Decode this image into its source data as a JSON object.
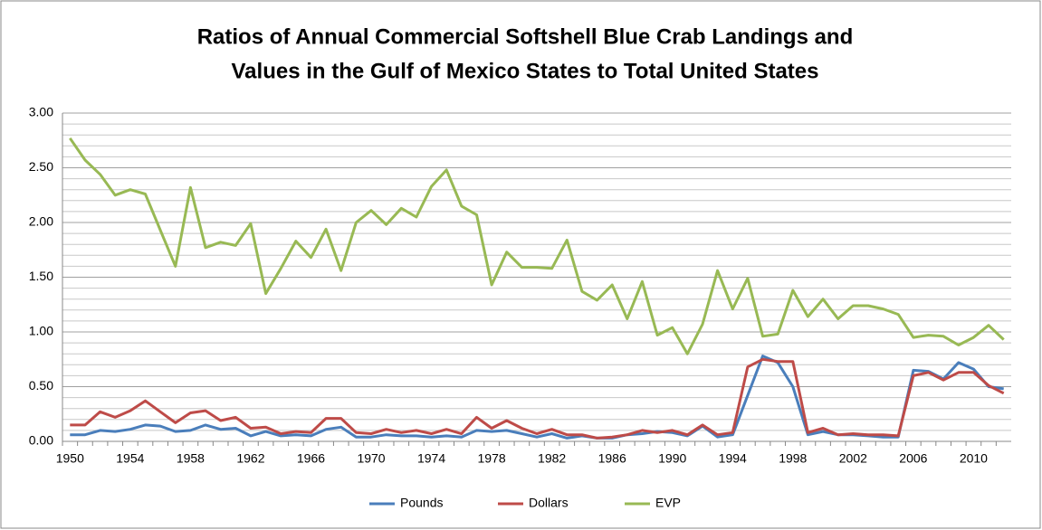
{
  "chart_data": {
    "type": "line",
    "title": [
      "Ratios of Annual Commercial Softshell Blue Crab Landings and",
      "Values in the Gulf of Mexico States to Total United States"
    ],
    "categories": [
      "1950",
      null,
      null,
      null,
      "1954",
      null,
      null,
      null,
      "1958",
      null,
      null,
      null,
      "1962",
      null,
      null,
      null,
      "1966",
      null,
      null,
      null,
      "1970",
      null,
      null,
      null,
      "1974",
      null,
      null,
      null,
      "1978",
      null,
      null,
      null,
      "1982",
      null,
      null,
      null,
      "1986",
      null,
      null,
      null,
      "1990",
      null,
      null,
      null,
      "1994",
      null,
      null,
      null,
      "1998",
      null,
      null,
      null,
      "2002",
      null,
      null,
      null,
      "2006",
      null,
      null,
      null,
      "2010",
      null,
      null
    ],
    "series": [
      {
        "name": "Pounds",
        "color": "#4a7ebb",
        "values": [
          0.06,
          0.06,
          0.1,
          0.09,
          0.11,
          0.15,
          0.14,
          0.09,
          0.1,
          0.15,
          0.11,
          0.12,
          0.05,
          0.09,
          0.05,
          0.06,
          0.05,
          0.11,
          0.13,
          0.04,
          0.04,
          0.06,
          0.05,
          0.05,
          0.04,
          0.05,
          0.04,
          0.1,
          0.09,
          0.1,
          0.07,
          0.04,
          0.07,
          0.03,
          0.05,
          0.03,
          0.03,
          0.06,
          0.07,
          0.09,
          0.08,
          0.05,
          0.14,
          0.04,
          0.06,
          0.42,
          0.78,
          0.72,
          0.5,
          0.06,
          0.09,
          0.06,
          0.06,
          0.05,
          0.04,
          0.04,
          0.65,
          0.64,
          0.57,
          0.72,
          0.66,
          0.5,
          0.48
        ]
      },
      {
        "name": "Dollars",
        "color": "#be4b48",
        "values": [
          0.15,
          0.15,
          0.27,
          0.22,
          0.28,
          0.37,
          0.27,
          0.17,
          0.26,
          0.28,
          0.19,
          0.22,
          0.12,
          0.13,
          0.07,
          0.09,
          0.08,
          0.21,
          0.21,
          0.08,
          0.07,
          0.11,
          0.08,
          0.1,
          0.07,
          0.11,
          0.07,
          0.22,
          0.12,
          0.19,
          0.12,
          0.07,
          0.11,
          0.06,
          0.06,
          0.03,
          0.04,
          0.06,
          0.1,
          0.08,
          0.1,
          0.06,
          0.15,
          0.06,
          0.08,
          0.68,
          0.75,
          0.73,
          0.73,
          0.08,
          0.12,
          0.06,
          0.07,
          0.06,
          0.06,
          0.05,
          0.6,
          0.63,
          0.56,
          0.63,
          0.63,
          0.51,
          0.44
        ]
      },
      {
        "name": "EVP",
        "color": "#98b954",
        "values": [
          2.77,
          2.57,
          2.44,
          2.25,
          2.3,
          2.26,
          1.93,
          1.6,
          2.32,
          1.77,
          1.82,
          1.79,
          1.99,
          1.35,
          1.58,
          1.83,
          1.68,
          1.94,
          1.56,
          2.0,
          2.11,
          1.98,
          2.13,
          2.05,
          2.33,
          2.48,
          2.15,
          2.07,
          1.43,
          1.73,
          1.59,
          1.59,
          1.58,
          1.84,
          1.37,
          1.29,
          1.43,
          1.12,
          1.46,
          0.97,
          1.04,
          0.8,
          1.07,
          1.56,
          1.21,
          1.49,
          0.96,
          0.98,
          1.38,
          1.14,
          1.3,
          1.12,
          1.24,
          1.24,
          1.21,
          1.16,
          0.95,
          0.97,
          0.96,
          0.88,
          0.95,
          1.06,
          0.93
        ]
      }
    ],
    "ylim": [
      0,
      3
    ],
    "yticks": [
      {
        "value": 0,
        "label": "0.00"
      },
      {
        "value": 0.5,
        "label": "0.50"
      },
      {
        "value": 1,
        "label": "1.00"
      },
      {
        "value": 1.5,
        "label": "1.50"
      },
      {
        "value": 2,
        "label": "2.00"
      },
      {
        "value": 2.5,
        "label": "2.50"
      },
      {
        "value": 3,
        "label": "3.00"
      }
    ],
    "minor_yticks": [
      0.1,
      0.2,
      0.3,
      0.4,
      0.6,
      0.7,
      0.8,
      0.9,
      1.1,
      1.2,
      1.3,
      1.4,
      1.6,
      1.7,
      1.8,
      1.9,
      2.1,
      2.2,
      2.3,
      2.4,
      2.6,
      2.7,
      2.8,
      2.9
    ],
    "grid": true,
    "legend": "bottom"
  }
}
